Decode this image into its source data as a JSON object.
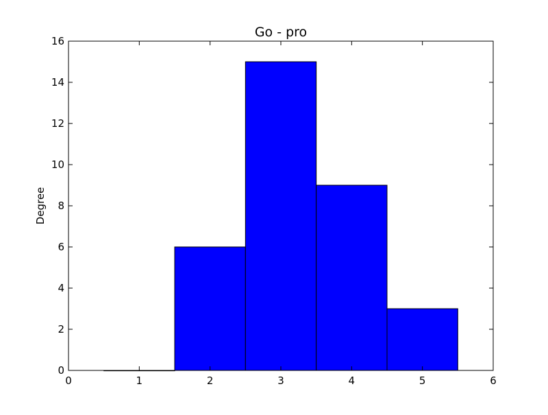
{
  "chart_data": {
    "type": "bar",
    "title": "Go - pro",
    "xlabel": "",
    "ylabel": "Degree",
    "xlim": [
      0,
      6
    ],
    "ylim": [
      0,
      16
    ],
    "xticks": [
      0,
      1,
      2,
      3,
      4,
      5,
      6
    ],
    "yticks": [
      0,
      2,
      4,
      6,
      8,
      10,
      12,
      14,
      16
    ],
    "bar_color": "#0000ff",
    "edge_color": "#000000",
    "grid": false,
    "bars": [
      {
        "x": 1,
        "value": 0
      },
      {
        "x": 2,
        "value": 6
      },
      {
        "x": 3,
        "value": 15
      },
      {
        "x": 4,
        "value": 9
      },
      {
        "x": 5,
        "value": 3
      }
    ]
  }
}
